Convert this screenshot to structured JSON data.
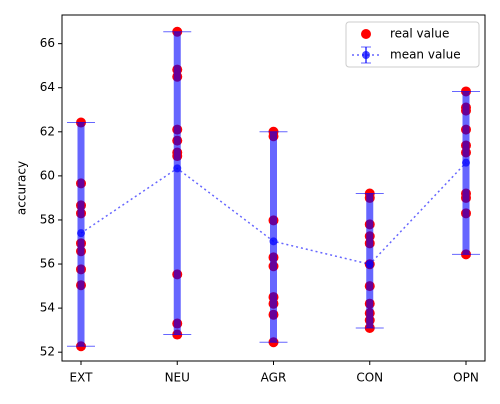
{
  "chart_data": {
    "type": "scatter",
    "categories": [
      "EXT",
      "NEU",
      "AGR",
      "CON",
      "OPN"
    ],
    "ylabel": "accuracy",
    "ylim": [
      51.6,
      67.3
    ],
    "yticks": [
      52,
      54,
      56,
      58,
      60,
      62,
      64,
      66
    ],
    "legend": "upper right",
    "series": [
      {
        "name": "real value",
        "color": "red",
        "values": [
          [
            62.42,
            59.66,
            58.66,
            58.3,
            56.94,
            56.58,
            55.76,
            55.04,
            52.27
          ],
          [
            66.54,
            64.82,
            64.5,
            62.1,
            61.6,
            61.06,
            60.9,
            55.53,
            53.3,
            52.8
          ],
          [
            62.0,
            61.8,
            57.98,
            56.3,
            55.9,
            54.5,
            54.2,
            53.7,
            52.45
          ],
          [
            59.2,
            59.0,
            57.8,
            57.26,
            56.94,
            55.99,
            55.0,
            54.2,
            53.77,
            53.45,
            53.1
          ],
          [
            63.83,
            63.1,
            62.96,
            62.1,
            61.38,
            61.06,
            59.2,
            59.0,
            58.3,
            56.44
          ]
        ]
      },
      {
        "name": "mean value",
        "color": "blue",
        "values": [
          57.4,
          60.34,
          57.03,
          55.99,
          60.6
        ],
        "yerr_minus": [
          5.13,
          7.54,
          4.58,
          2.89,
          4.16
        ],
        "yerr_plus": [
          5.02,
          6.2,
          4.97,
          3.21,
          3.23
        ]
      }
    ]
  }
}
